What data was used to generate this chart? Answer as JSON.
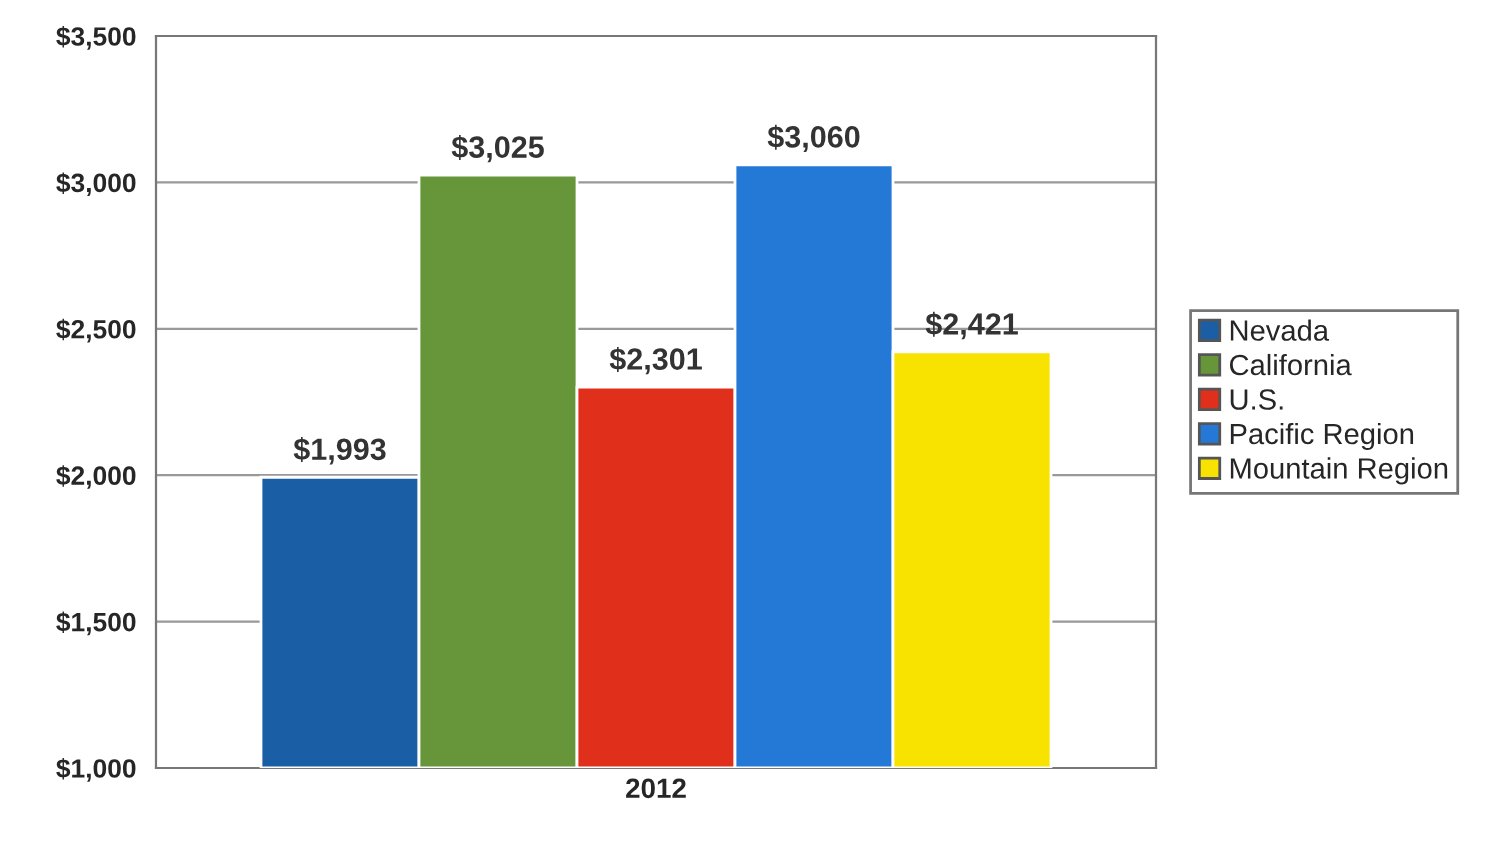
{
  "chart_data": {
    "type": "bar",
    "categories": [
      "2012"
    ],
    "series": [
      {
        "name": "Nevada",
        "color": "#1a5ea6",
        "values": [
          1993
        ],
        "value_labels": [
          "$1,993"
        ]
      },
      {
        "name": "California",
        "color": "#66953a",
        "values": [
          3025
        ],
        "value_labels": [
          "$3,025"
        ]
      },
      {
        "name": "U.S.",
        "color": "#e0301c",
        "values": [
          2301
        ],
        "value_labels": [
          "$2,301"
        ]
      },
      {
        "name": "Pacific Region",
        "color": "#2479d6",
        "values": [
          3060
        ],
        "value_labels": [
          "$3,060"
        ]
      },
      {
        "name": "Mountain Region",
        "color": "#f7e200",
        "values": [
          2421
        ],
        "value_labels": [
          "$2,421"
        ]
      }
    ],
    "ylim": [
      1000,
      3500
    ],
    "yticks": [
      {
        "value": 1000,
        "label": "$1,000"
      },
      {
        "value": 1500,
        "label": "$1,500"
      },
      {
        "value": 2000,
        "label": "$2,000"
      },
      {
        "value": 2500,
        "label": "$2,500"
      },
      {
        "value": 3000,
        "label": "$3,000"
      },
      {
        "value": 3500,
        "label": "$3,500"
      }
    ],
    "grid": "y",
    "legend": "right"
  }
}
